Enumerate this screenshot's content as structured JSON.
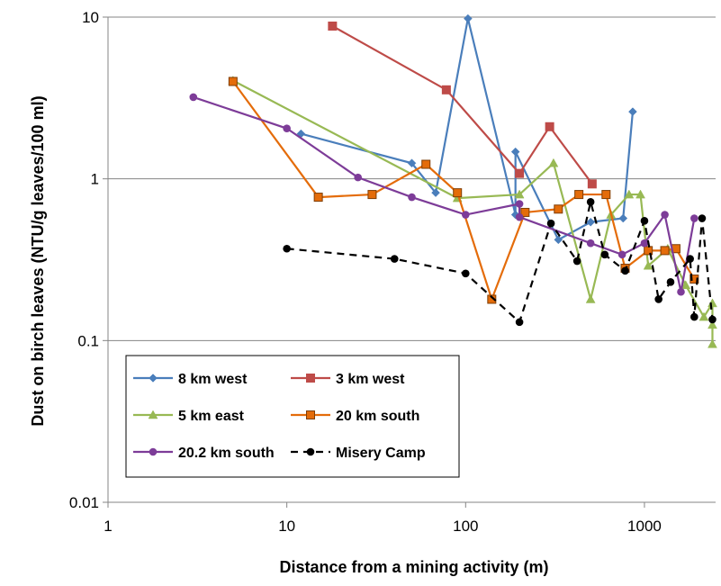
{
  "chart_data": {
    "type": "scatter",
    "title": "",
    "xlabel": "Distance from a mining activity (m)",
    "ylabel": "Dust on birch leaves (NTU/g leaves/100 ml)",
    "xscale": "log",
    "yscale": "log",
    "xlim": [
      1,
      2500
    ],
    "ylim": [
      0.01,
      10
    ],
    "x_ticks": [
      1,
      10,
      100,
      1000
    ],
    "x_tick_labels": [
      "1",
      "10",
      "100",
      "1000"
    ],
    "y_ticks": [
      0.01,
      0.1,
      1,
      10
    ],
    "y_tick_labels": [
      "0.01",
      "0.1",
      "1",
      "10"
    ],
    "grid": "horizontal major",
    "legend_position": "bottom-left",
    "series": [
      {
        "name": "8 km west",
        "color": "#4a7ebb",
        "marker": "diamond",
        "line": "solid",
        "points": [
          [
            12,
            1.9
          ],
          [
            50,
            1.25
          ],
          [
            68,
            0.82
          ],
          [
            103,
            9.8
          ],
          [
            190,
            0.6
          ],
          [
            190,
            1.47
          ],
          [
            330,
            0.42
          ],
          [
            500,
            0.54
          ],
          [
            760,
            0.57
          ],
          [
            860,
            2.6
          ]
        ]
      },
      {
        "name": "3 km west",
        "color": "#be4b48",
        "marker": "square",
        "line": "solid",
        "points": [
          [
            18,
            8.8
          ],
          [
            78,
            3.55
          ],
          [
            200,
            1.08
          ],
          [
            295,
            2.1
          ],
          [
            510,
            0.93
          ]
        ]
      },
      {
        "name": "5 km east",
        "color": "#98b954",
        "marker": "triangle",
        "line": "solid",
        "points": [
          [
            5,
            4.05
          ],
          [
            90,
            0.76
          ],
          [
            200,
            0.8
          ],
          [
            310,
            1.25
          ],
          [
            500,
            0.18
          ],
          [
            650,
            0.6
          ],
          [
            820,
            0.8
          ],
          [
            950,
            0.8
          ],
          [
            1050,
            0.29
          ],
          [
            1350,
            0.37
          ],
          [
            1700,
            0.22
          ],
          [
            2150,
            0.14
          ],
          [
            2400,
            0.17
          ],
          [
            2400,
            0.095
          ],
          [
            2400,
            0.125
          ]
        ]
      },
      {
        "name": "20 km south",
        "color": "#e46c0a",
        "marker": "square",
        "line": "solid",
        "points": [
          [
            5,
            4.0
          ],
          [
            15,
            0.77
          ],
          [
            30,
            0.8
          ],
          [
            60,
            1.23
          ],
          [
            90,
            0.82
          ],
          [
            140,
            0.18
          ],
          [
            215,
            0.62
          ],
          [
            330,
            0.65
          ],
          [
            430,
            0.8
          ],
          [
            610,
            0.8
          ],
          [
            780,
            0.28
          ],
          [
            1050,
            0.36
          ],
          [
            1300,
            0.36
          ],
          [
            1500,
            0.37
          ],
          [
            1900,
            0.24
          ]
        ]
      },
      {
        "name": "20.2 km south",
        "color": "#7d3c98",
        "marker": "circle",
        "line": "solid",
        "points": [
          [
            3,
            3.2
          ],
          [
            10,
            2.05
          ],
          [
            25,
            1.02
          ],
          [
            50,
            0.77
          ],
          [
            100,
            0.6
          ],
          [
            200,
            0.7
          ],
          [
            200,
            0.58
          ],
          [
            500,
            0.4
          ],
          [
            750,
            0.34
          ],
          [
            1000,
            0.4
          ],
          [
            1300,
            0.6
          ],
          [
            1600,
            0.2
          ],
          [
            1900,
            0.57
          ]
        ]
      },
      {
        "name": "Misery Camp",
        "color": "#000000",
        "marker": "circle",
        "line": "dashed",
        "points": [
          [
            10,
            0.37
          ],
          [
            40,
            0.32
          ],
          [
            100,
            0.26
          ],
          [
            200,
            0.13
          ],
          [
            300,
            0.53
          ],
          [
            420,
            0.31
          ],
          [
            500,
            0.72
          ],
          [
            600,
            0.34
          ],
          [
            780,
            0.27
          ],
          [
            1000,
            0.55
          ],
          [
            1200,
            0.18
          ],
          [
            1400,
            0.23
          ],
          [
            1800,
            0.32
          ],
          [
            1900,
            0.14
          ],
          [
            2100,
            0.57
          ],
          [
            2400,
            0.135
          ]
        ]
      }
    ]
  }
}
